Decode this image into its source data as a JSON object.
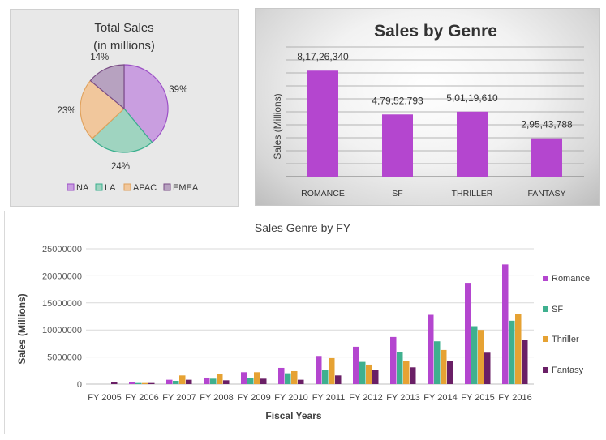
{
  "chart_data": [
    {
      "type": "pie",
      "title": "Total Sales",
      "subtitle": "(in millions)",
      "categories": [
        "NA",
        "LA",
        "APAC",
        "EMEA"
      ],
      "values": [
        39,
        24,
        23,
        14
      ],
      "value_labels": [
        "39%",
        "24%",
        "23%",
        "14%"
      ],
      "colors": [
        "#c99ee0",
        "#9fd4c0",
        "#f1c79c",
        "#b7a2c0"
      ],
      "stroke_colors": [
        "#9b4fc6",
        "#3aaf8e",
        "#e0a15c",
        "#7a4d86"
      ],
      "legend": "bottom"
    },
    {
      "type": "bar",
      "title": "Sales by Genre",
      "ylabel": "Sales (Millions)",
      "categories": [
        "ROMANCE",
        "SF",
        "THRILLER",
        "FANTASY"
      ],
      "values": [
        81726340,
        47952793,
        50119610,
        29543788
      ],
      "value_labels": [
        "8,17,26,340",
        "4,79,52,793",
        "5,01,19,610",
        "2,95,43,788"
      ],
      "ylim": [
        0,
        100000000
      ],
      "grid": true,
      "bar_color": "#b446cf"
    },
    {
      "type": "bar",
      "title": "Sales Genre by FY",
      "xlabel": "Fiscal Years",
      "ylabel": "Sales (Millions)",
      "categories": [
        "FY 2005",
        "FY 2006",
        "FY 2007",
        "FY 2008",
        "FY 2009",
        "FY 2010",
        "FY 2011",
        "FY 2012",
        "FY 2013",
        "FY 2014",
        "FY 2015",
        "FY 2016"
      ],
      "ylim": [
        0,
        25000000
      ],
      "yticks": [
        0,
        5000000,
        10000000,
        15000000,
        20000000,
        25000000
      ],
      "ytick_labels": [
        "0",
        "5000000",
        "10000000",
        "15000000",
        "20000000",
        "25000000"
      ],
      "grid": true,
      "legend": "right",
      "series": [
        {
          "name": "Romance",
          "color": "#b446cf",
          "values": [
            0,
            300000,
            800000,
            1200000,
            2200000,
            3000000,
            5200000,
            6900000,
            8700000,
            12800000,
            18700000,
            22100000
          ]
        },
        {
          "name": "SF",
          "color": "#3fb08f",
          "values": [
            0,
            200000,
            600000,
            1000000,
            1100000,
            2000000,
            2600000,
            4100000,
            5900000,
            7900000,
            10700000,
            11700000
          ]
        },
        {
          "name": "Thriller",
          "color": "#e6a233",
          "values": [
            0,
            200000,
            1600000,
            1900000,
            2200000,
            2400000,
            4800000,
            3600000,
            4300000,
            6300000,
            10000000,
            13000000
          ]
        },
        {
          "name": "Fantasy",
          "color": "#6a1f66",
          "values": [
            400000,
            200000,
            800000,
            700000,
            1000000,
            800000,
            1600000,
            2600000,
            3100000,
            4300000,
            5800000,
            8200000
          ]
        }
      ]
    }
  ]
}
